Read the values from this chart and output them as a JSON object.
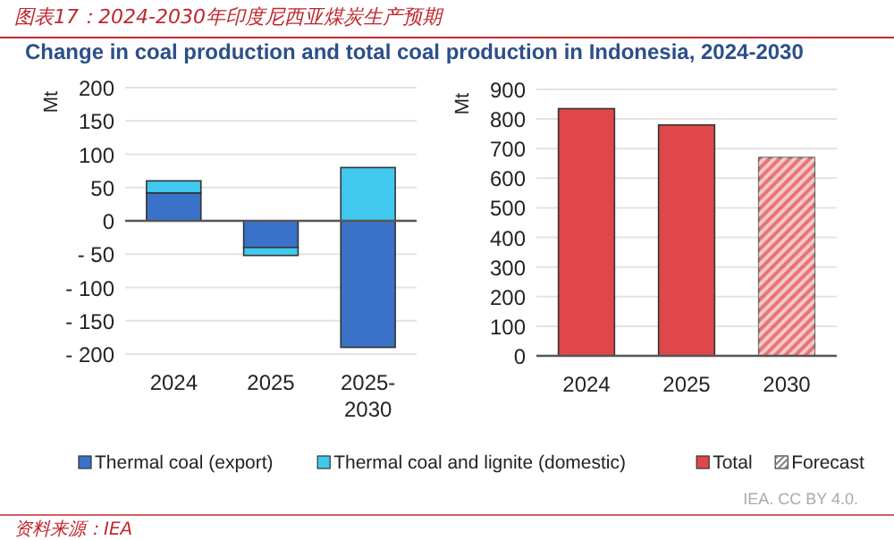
{
  "chart_data": [
    {
      "type": "bar",
      "title": "图表17：2024-2030年印度尼西亚煤炭生产预期",
      "subtitle": "Change in coal production and total coal production in Indonesia, 2024-2030",
      "ylabel": "Mt",
      "categories": [
        "2024",
        "2025",
        "2025-\n2030"
      ],
      "stacked": true,
      "series": [
        {
          "name": "Thermal coal (export)",
          "color": "#3a72c9",
          "values": [
            42,
            -40,
            -190
          ]
        },
        {
          "name": "Thermal coal and lignite (domestic)",
          "color": "#41c8ef",
          "values": [
            18,
            -12,
            80
          ]
        }
      ],
      "ylim": [
        -200,
        200
      ],
      "yticks": [
        {
          "value": 200,
          "label": "200"
        },
        {
          "value": 150,
          "label": "150"
        },
        {
          "value": 100,
          "label": "100"
        },
        {
          "value": 50,
          "label": "50"
        },
        {
          "value": 0,
          "label": "0"
        },
        {
          "value": -50,
          "label": "- 50"
        },
        {
          "value": -100,
          "label": "- 100"
        },
        {
          "value": -150,
          "label": "- 150"
        },
        {
          "value": -200,
          "label": "- 200"
        }
      ],
      "grid": "y",
      "legend": "bottom"
    },
    {
      "type": "bar",
      "ylabel": "Mt",
      "categories": [
        "2024",
        "2025",
        "2030"
      ],
      "series": [
        {
          "name": "Total",
          "color": "#e0474a",
          "values": [
            835,
            780,
            670
          ]
        },
        {
          "name": "Forecast",
          "color": "#808080",
          "values": [
            null,
            null,
            null
          ]
        }
      ],
      "ylim": [
        0,
        900
      ],
      "yticks": [
        0,
        100,
        200,
        300,
        400,
        500,
        600,
        700,
        800,
        900
      ],
      "grid": "y",
      "legend": "bottom",
      "annotations": [
        "IEA. CC BY 4.0.",
        "资料来源：IEA"
      ]
    }
  ]
}
